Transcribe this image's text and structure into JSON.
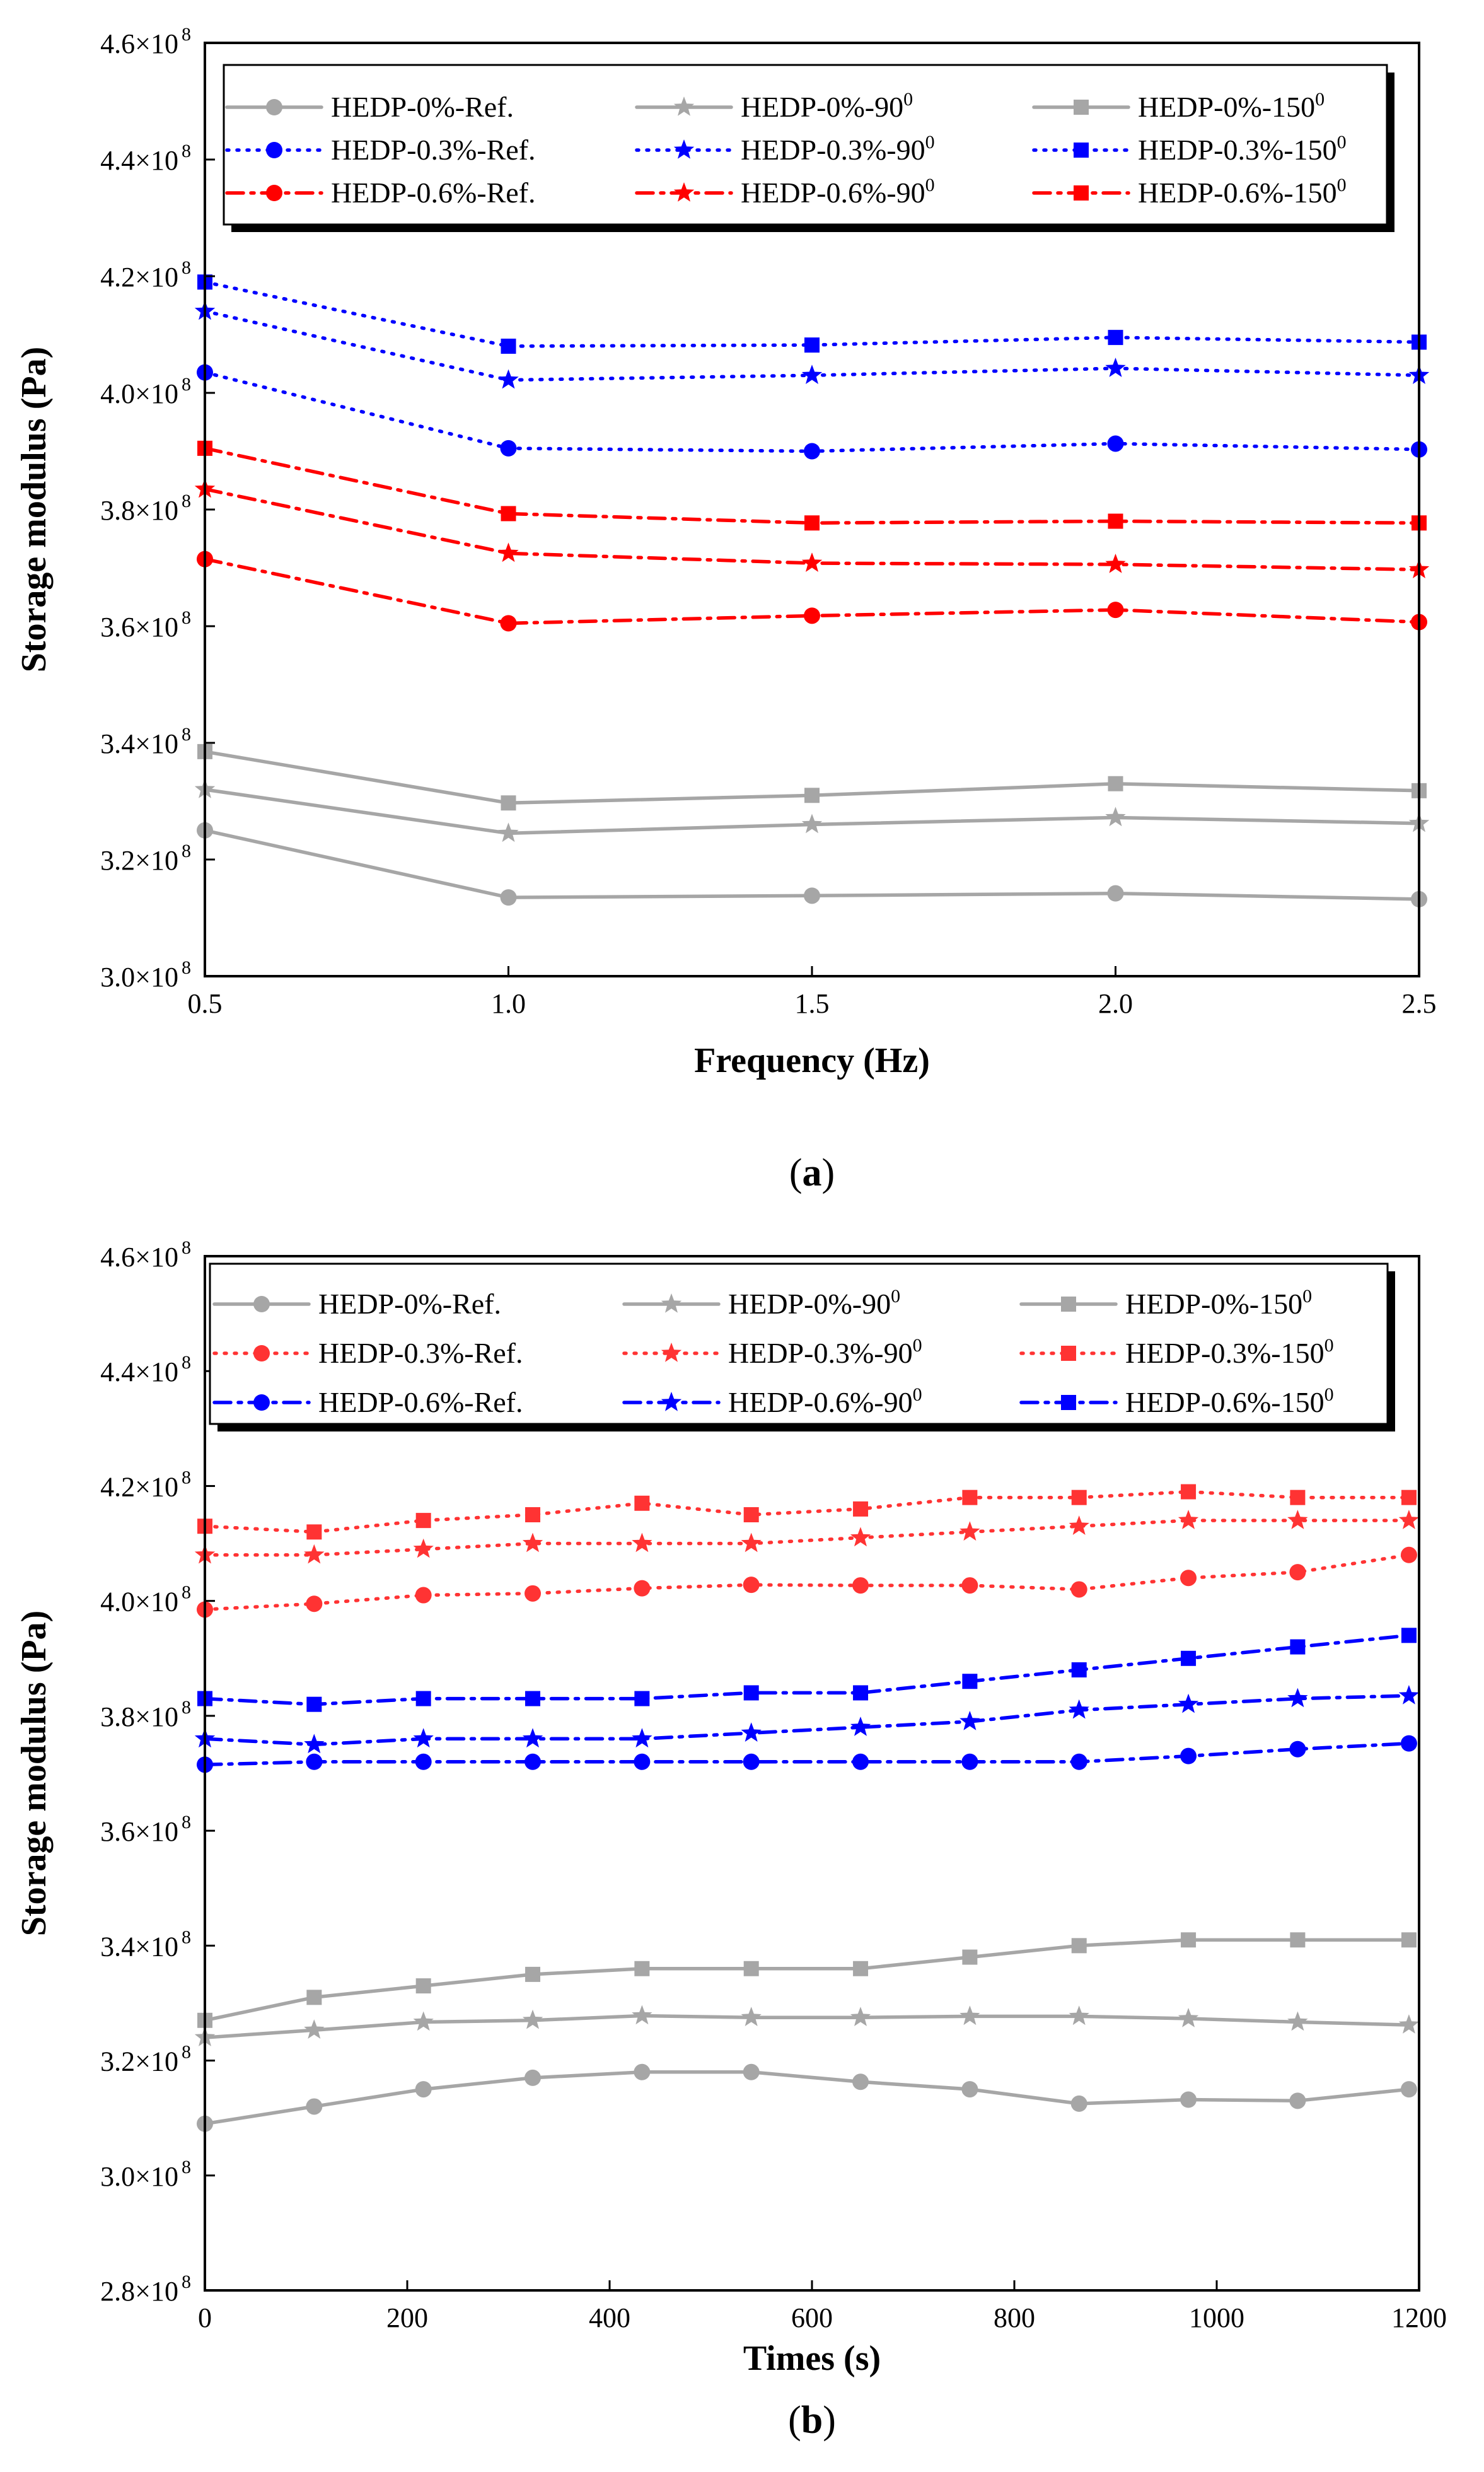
{
  "chart_data": [
    {
      "type": "line",
      "caption_open": "(",
      "caption_letter": "a",
      "caption_close": ")",
      "xlabel": "Frequency (Hz)",
      "ylabel": "Storage modulus (Pa)",
      "xlim": [
        0.5,
        2.5
      ],
      "ylim": [
        300000000.0,
        460000000.0
      ],
      "x_ticks": [
        0.5,
        1.0,
        1.5,
        2.0,
        2.5
      ],
      "x_tick_labels": [
        "0.5",
        "1.0",
        "1.5",
        "2.0",
        "2.5"
      ],
      "y_ticks": [
        300000000.0,
        320000000.0,
        340000000.0,
        360000000.0,
        380000000.0,
        400000000.0,
        420000000.0,
        440000000.0,
        460000000.0
      ],
      "y_tick_mantissas": [
        "3.0",
        "3.2",
        "3.4",
        "3.6",
        "3.8",
        "4.0",
        "4.2",
        "4.4",
        "4.6"
      ],
      "y_tick_times": "×10",
      "y_tick_exponent": "8",
      "grid": false,
      "legend_position": "top",
      "x": [
        0.5,
        1.0,
        1.5,
        2.0,
        2.5
      ],
      "series": [
        {
          "name": "HEDP-0%-Ref.",
          "superscript": "",
          "color": "#a6a6a6",
          "dash": "solid",
          "marker": "circle",
          "values": [
            325000000.0,
            313500000.0,
            313800000.0,
            314200000.0,
            313200000.0
          ]
        },
        {
          "name": "HEDP-0%-90",
          "superscript": "0",
          "color": "#a6a6a6",
          "dash": "solid",
          "marker": "star",
          "values": [
            332000000.0,
            324500000.0,
            326000000.0,
            327200000.0,
            326200000.0
          ]
        },
        {
          "name": "HEDP-0%-150",
          "superscript": "0",
          "color": "#a6a6a6",
          "dash": "solid",
          "marker": "square",
          "values": [
            338500000.0,
            329700000.0,
            331000000.0,
            333000000.0,
            331800000.0
          ]
        },
        {
          "name": "HEDP-0.3%-Ref.",
          "superscript": "",
          "color": "#0000ff",
          "dash": "dot",
          "marker": "circle",
          "values": [
            403500000.0,
            390500000.0,
            390000000.0,
            391300000.0,
            390300000.0
          ]
        },
        {
          "name": "HEDP-0.3%-90",
          "superscript": "0",
          "color": "#0000ff",
          "dash": "dot",
          "marker": "star",
          "values": [
            414000000.0,
            402200000.0,
            403000000.0,
            404200000.0,
            403000000.0
          ]
        },
        {
          "name": "HEDP-0.3%-150",
          "superscript": "0",
          "color": "#0000ff",
          "dash": "dot",
          "marker": "square",
          "values": [
            419000000.0,
            408000000.0,
            408200000.0,
            409500000.0,
            408700000.0
          ]
        },
        {
          "name": "HEDP-0.6%-Ref.",
          "superscript": "",
          "color": "#ff0000",
          "dash": "dashdot",
          "marker": "circle",
          "values": [
            371500000.0,
            360500000.0,
            361800000.0,
            362800000.0,
            360700000.0
          ]
        },
        {
          "name": "HEDP-0.6%-90",
          "superscript": "0",
          "color": "#ff0000",
          "dash": "dashdot",
          "marker": "star",
          "values": [
            383500000.0,
            372500000.0,
            370800000.0,
            370600000.0,
            369700000.0
          ]
        },
        {
          "name": "HEDP-0.6%-150",
          "superscript": "0",
          "color": "#ff0000",
          "dash": "dashdot",
          "marker": "square",
          "values": [
            390500000.0,
            379300000.0,
            377700000.0,
            378000000.0,
            377700000.0
          ]
        }
      ]
    },
    {
      "type": "line",
      "caption_open": "(",
      "caption_letter": "b",
      "caption_close": ")",
      "xlabel": "Times (s)",
      "ylabel": "Storage modulus (Pa)",
      "xlim": [
        0,
        1200
      ],
      "ylim": [
        280000000.0,
        460000000.0
      ],
      "x_ticks": [
        0,
        200,
        400,
        600,
        800,
        1000,
        1200
      ],
      "x_tick_labels": [
        "0",
        "200",
        "400",
        "600",
        "800",
        "1000",
        "1200"
      ],
      "y_ticks": [
        280000000.0,
        300000000.0,
        320000000.0,
        340000000.0,
        360000000.0,
        380000000.0,
        400000000.0,
        420000000.0,
        440000000.0,
        460000000.0
      ],
      "y_tick_mantissas": [
        "2.8",
        "3.0",
        "3.2",
        "3.4",
        "3.6",
        "3.8",
        "4.0",
        "4.2",
        "4.4",
        "4.6"
      ],
      "y_tick_times": "×10",
      "y_tick_exponent": "8",
      "grid": false,
      "legend_position": "top",
      "x": [
        0,
        108,
        216,
        324,
        432,
        540,
        648,
        756,
        864,
        972,
        1080,
        1190
      ],
      "series": [
        {
          "name": "HEDP-0%-Ref.",
          "superscript": "",
          "color": "#a6a6a6",
          "dash": "solid",
          "marker": "circle",
          "values": [
            309000000.0,
            312000000.0,
            315000000.0,
            317000000.0,
            318000000.0,
            318000000.0,
            316300000.0,
            315000000.0,
            312500000.0,
            313200000.0,
            313000000.0,
            315000000.0
          ]
        },
        {
          "name": "HEDP-0%-90",
          "superscript": "0",
          "color": "#a6a6a6",
          "dash": "solid",
          "marker": "star",
          "values": [
            324000000.0,
            325300000.0,
            326700000.0,
            327000000.0,
            327800000.0,
            327500000.0,
            327500000.0,
            327700000.0,
            327700000.0,
            327300000.0,
            326700000.0,
            326200000.0
          ]
        },
        {
          "name": "HEDP-0%-150",
          "superscript": "0",
          "color": "#a6a6a6",
          "dash": "solid",
          "marker": "square",
          "values": [
            327000000.0,
            331000000.0,
            333000000.0,
            335000000.0,
            336000000.0,
            336000000.0,
            336000000.0,
            338000000.0,
            340000000.0,
            341000000.0,
            341000000.0,
            341000000.0
          ]
        },
        {
          "name": "HEDP-0.3%-Ref.",
          "superscript": "",
          "color": "#ff3333",
          "dash": "dot",
          "marker": "circle",
          "values": [
            398500000.0,
            399500000.0,
            401000000.0,
            401300000.0,
            402200000.0,
            402800000.0,
            402700000.0,
            402700000.0,
            402000000.0,
            404000000.0,
            405000000.0,
            408000000.0
          ]
        },
        {
          "name": "HEDP-0.3%-90",
          "superscript": "0",
          "color": "#ff3333",
          "dash": "dot",
          "marker": "star",
          "values": [
            408000000.0,
            408000000.0,
            409000000.0,
            410000000.0,
            410000000.0,
            410000000.0,
            411000000.0,
            412000000.0,
            413000000.0,
            414000000.0,
            414000000.0,
            414000000.0
          ]
        },
        {
          "name": "HEDP-0.3%-150",
          "superscript": "0",
          "color": "#ff3333",
          "dash": "dot",
          "marker": "square",
          "values": [
            413000000.0,
            412000000.0,
            414000000.0,
            415000000.0,
            417000000.0,
            415000000.0,
            416000000.0,
            418000000.0,
            418000000.0,
            419000000.0,
            418000000.0,
            418000000.0
          ]
        },
        {
          "name": "HEDP-0.6%-Ref.",
          "superscript": "",
          "color": "#0000ff",
          "dash": "dashdot",
          "marker": "circle",
          "values": [
            371500000.0,
            372000000.0,
            372000000.0,
            372000000.0,
            372000000.0,
            372000000.0,
            372000000.0,
            372000000.0,
            372000000.0,
            373000000.0,
            374200000.0,
            375200000.0
          ]
        },
        {
          "name": "HEDP-0.6%-90",
          "superscript": "0",
          "color": "#0000ff",
          "dash": "dashdot",
          "marker": "star",
          "values": [
            376000000.0,
            375000000.0,
            376000000.0,
            376000000.0,
            376000000.0,
            377000000.0,
            378000000.0,
            379000000.0,
            381000000.0,
            382000000.0,
            383000000.0,
            383500000.0
          ]
        },
        {
          "name": "HEDP-0.6%-150",
          "superscript": "0",
          "color": "#0000ff",
          "dash": "dashdot",
          "marker": "square",
          "values": [
            383000000.0,
            382000000.0,
            383000000.0,
            383000000.0,
            383000000.0,
            384000000.0,
            384000000.0,
            386000000.0,
            388000000.0,
            390000000.0,
            392000000.0,
            394000000.0
          ]
        }
      ]
    }
  ]
}
